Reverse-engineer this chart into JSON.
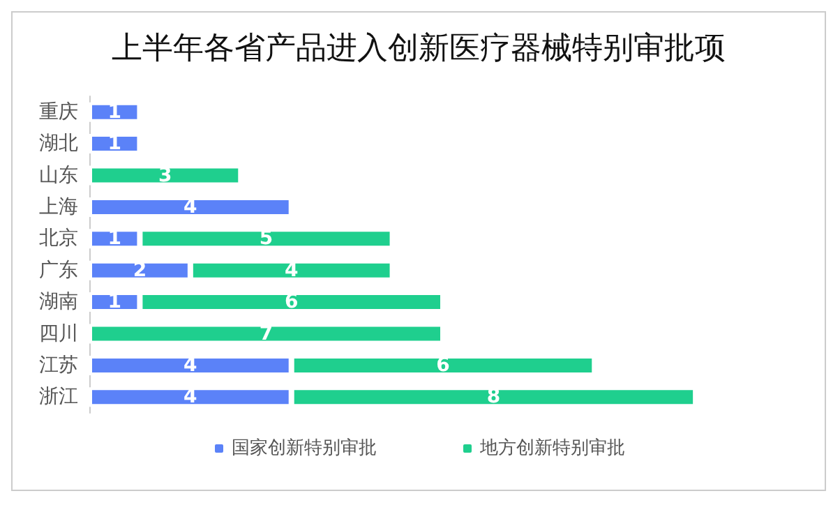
{
  "chart_data": {
    "type": "bar",
    "title": "上半年各省产品进入创新医疗器械特别审批项",
    "orientation": "horizontal",
    "stacked": true,
    "data_labels": true,
    "tick_labels": "y",
    "grid": false,
    "legend": "bottom",
    "categories": [
      "重庆",
      "湖北",
      "山东",
      "上海",
      "北京",
      "广东",
      "湖南",
      "四川",
      "江苏",
      "浙江"
    ],
    "series": [
      {
        "name": "国家创新特别审批",
        "color": "#5b82f8",
        "values": [
          1,
          1,
          null,
          4,
          1,
          2,
          1,
          null,
          4,
          4
        ]
      },
      {
        "name": "地方创新特别审批",
        "color": "#1fcf8e",
        "values": [
          null,
          null,
          3,
          null,
          5,
          4,
          6,
          7,
          6,
          8
        ]
      }
    ]
  }
}
